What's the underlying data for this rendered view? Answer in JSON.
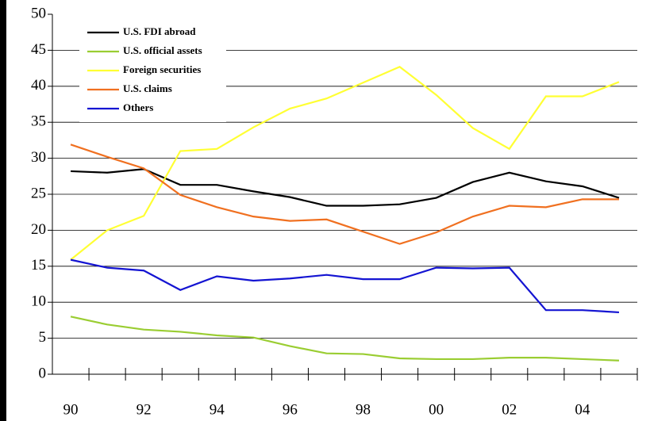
{
  "chart_data": {
    "type": "line",
    "categories": [
      "90",
      null,
      "92",
      null,
      "94",
      null,
      "96",
      null,
      "98",
      null,
      "00",
      null,
      "02",
      null,
      "04",
      null
    ],
    "series": [
      {
        "name": "U.S. FDI abroad",
        "color": "#000000",
        "values": [
          28.2,
          28.0,
          28.5,
          26.3,
          26.3,
          25.4,
          24.6,
          23.4,
          23.4,
          23.6,
          24.5,
          26.7,
          28.0,
          26.8,
          26.1,
          24.5
        ]
      },
      {
        "name": "U.S. official assets",
        "color": "#9acd32",
        "values": [
          8.0,
          6.9,
          6.2,
          5.9,
          5.4,
          5.1,
          3.9,
          2.9,
          2.8,
          2.2,
          2.1,
          2.1,
          2.3,
          2.3,
          2.1,
          1.9
        ]
      },
      {
        "name": "Foreign securities",
        "color": "#ffff33",
        "values": [
          15.9,
          20.0,
          22.0,
          31.0,
          31.3,
          34.3,
          36.9,
          38.3,
          40.5,
          42.7,
          38.8,
          34.2,
          31.3,
          38.6,
          38.6,
          40.6
        ]
      },
      {
        "name": "U.S. claims",
        "color": "#f07020",
        "values": [
          31.9,
          30.2,
          28.6,
          24.9,
          23.2,
          21.9,
          21.3,
          21.5,
          19.8,
          18.1,
          19.7,
          21.9,
          23.4,
          23.2,
          24.3,
          24.3
        ]
      },
      {
        "name": "Others",
        "color": "#1414d2",
        "values": [
          15.9,
          14.8,
          14.4,
          11.7,
          13.6,
          13.0,
          13.3,
          13.8,
          13.2,
          13.2,
          14.8,
          14.7,
          14.8,
          8.9,
          8.9,
          8.6
        ]
      }
    ],
    "ylim": [
      0,
      50
    ],
    "yticks": [
      0,
      5,
      10,
      15,
      20,
      25,
      30,
      35,
      40,
      45,
      50
    ],
    "grid": true,
    "legend": "top-left"
  }
}
